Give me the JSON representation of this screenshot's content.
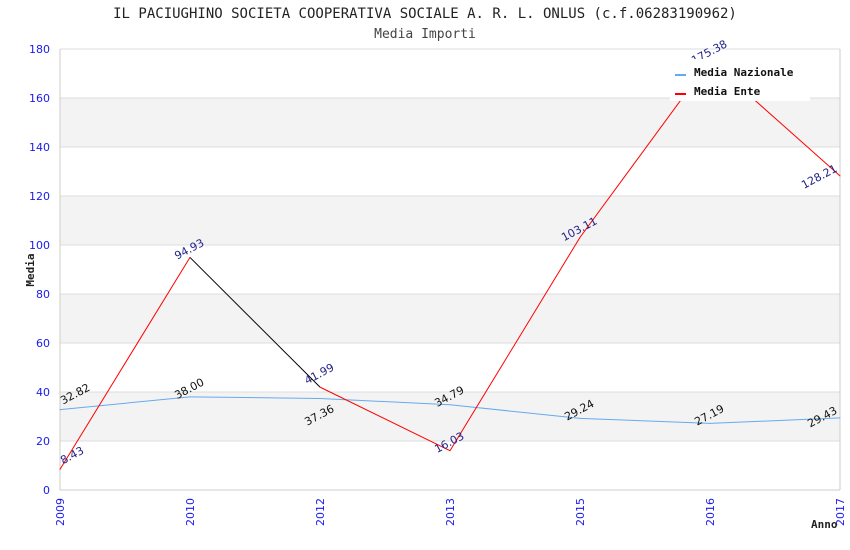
{
  "chart_data": {
    "type": "line",
    "title": "IL PACIUGHINO SOCIETA COOPERATIVA SOCIALE A. R. L. ONLUS (c.f.06283190962)",
    "subtitle": "Media Importi",
    "xlabel": "Anno",
    "ylabel": "Media",
    "categories": [
      "2009",
      "2010",
      "2012",
      "2013",
      "2015",
      "2016",
      "2017"
    ],
    "ylim": [
      0,
      180
    ],
    "yticks": [
      0,
      20,
      40,
      60,
      80,
      100,
      120,
      140,
      160,
      180
    ],
    "grid": true,
    "legend_position": "top-right",
    "series": [
      {
        "name": "Media Nazionale",
        "color": "#66aaee",
        "label_color": "#111111",
        "values": [
          32.82,
          38.0,
          37.36,
          34.79,
          29.24,
          27.19,
          29.43
        ],
        "labels": [
          "32.82",
          "38.00",
          "37.36",
          "34.79",
          "29.24",
          "27.19",
          "29.43"
        ]
      },
      {
        "name": "Media Ente",
        "color": "#ff0000",
        "label_color": "#222288",
        "segment_colors": [
          "#ff0000",
          "#000000",
          "#ff0000",
          "#ff0000",
          "#ff0000",
          "#ff0000"
        ],
        "values": [
          8.43,
          94.93,
          41.99,
          16.03,
          103.11,
          175.38,
          128.21
        ],
        "labels": [
          "8.43",
          "94.93",
          "41.99",
          "16.03",
          "103.11",
          "175.38",
          "128.21"
        ]
      }
    ]
  }
}
